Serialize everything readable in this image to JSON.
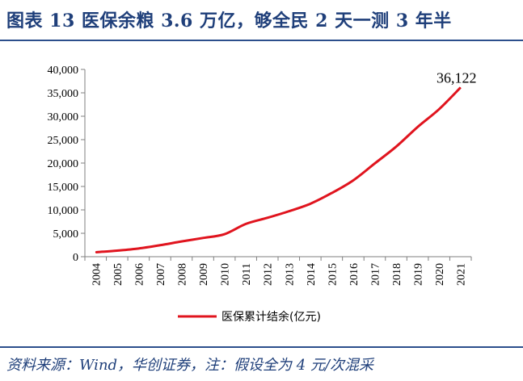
{
  "header": {
    "title": "图表 13   医保余粮 3.6 万亿，够全民 2 天一测 3 年半"
  },
  "footer": {
    "source": "资料来源：Wind，华创证券，注：假设全为 4 元/次混采"
  },
  "colors": {
    "accent": "#1f3f7a",
    "series": "#e0141e"
  },
  "chart_data": {
    "type": "line",
    "title": "",
    "xlabel": "",
    "ylabel": "",
    "categories": [
      "2004",
      "2005",
      "2006",
      "2007",
      "2008",
      "2009",
      "2010",
      "2011",
      "2012",
      "2013",
      "2014",
      "2015",
      "2016",
      "2017",
      "2018",
      "2019",
      "2020",
      "2021"
    ],
    "series": [
      {
        "name": "医保累计结余(亿元)",
        "values": [
          950,
          1300,
          1750,
          2450,
          3250,
          4000,
          4800,
          7000,
          8300,
          9700,
          11300,
          13600,
          16300,
          19900,
          23500,
          27700,
          31500,
          36122
        ]
      }
    ],
    "y_ticks": [
      "0",
      "5,000",
      "10,000",
      "15,000",
      "20,000",
      "25,000",
      "30,000",
      "35,000",
      "40,000"
    ],
    "ylim": [
      0,
      40000
    ],
    "grid": false,
    "legend_position": "bottom",
    "annotations": [
      {
        "category": "2021",
        "text": "36,122"
      }
    ]
  }
}
